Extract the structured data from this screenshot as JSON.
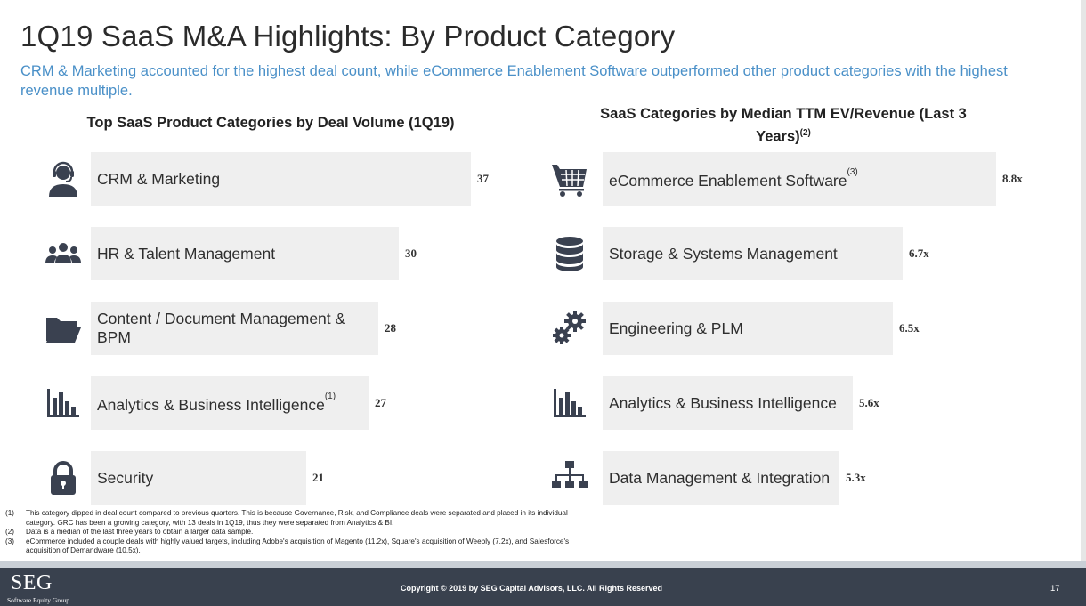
{
  "header": {
    "title": "1Q19 SaaS M&A Highlights: By Product Category",
    "subtitle": "CRM & Marketing accounted for the highest deal count, while eCommerce Enablement Software outperformed other product categories with the highest revenue multiple."
  },
  "chart_data": [
    {
      "type": "bar",
      "orientation": "horizontal",
      "title": "Top SaaS Product Categories by Deal Volume (1Q19)",
      "categories": [
        "CRM & Marketing",
        "HR & Talent Management",
        "Content / Document Management & BPM",
        "Analytics & Business Intelligence",
        "Security"
      ],
      "category_superscripts": [
        "",
        "",
        "",
        "(1)",
        ""
      ],
      "values": [
        37,
        30,
        28,
        27,
        21
      ],
      "value_labels": [
        "37",
        "30",
        "28",
        "27",
        "21"
      ],
      "icons": [
        "headset-user-icon",
        "users-group-icon",
        "folder-open-icon",
        "bar-chart-icon",
        "lock-icon"
      ],
      "bar_color": "#efefef"
    },
    {
      "type": "bar",
      "orientation": "horizontal",
      "title": "SaaS Categories by Median TTM EV/Revenue (Last 3 Years)",
      "title_superscript": "(2)",
      "categories": [
        "eCommerce Enablement Software",
        "Storage & Systems Management",
        "Engineering & PLM",
        "Analytics & Business Intelligence",
        "Data Management & Integration"
      ],
      "category_superscripts": [
        "(3)",
        "",
        "",
        "",
        ""
      ],
      "values": [
        8.8,
        6.7,
        6.5,
        5.6,
        5.3
      ],
      "value_labels": [
        "8.8x",
        "6.7x",
        "6.5x",
        "5.6x",
        "5.3x"
      ],
      "icons": [
        "shopping-cart-icon",
        "database-icon",
        "gears-icon",
        "bar-chart-icon",
        "org-chart-icon"
      ],
      "bar_color": "#efefef"
    }
  ],
  "footnotes": [
    {
      "num": "(1)",
      "text": "This category dipped in deal count compared to previous quarters. This is because Governance, Risk, and Compliance deals were separated and placed in its individual category. GRC has been a growing category, with 13 deals in 1Q19, thus they were separated from Analytics & BI."
    },
    {
      "num": "(2)",
      "text": "Data is a median of the last three years to obtain a larger data sample."
    },
    {
      "num": "(3)",
      "text": "eCommerce included a couple deals with highly valued targets, including Adobe's acquisition of Magento (11.2x), Square's acquisition of Weebly (7.2x), and Salesforce's acquisition of Demandware (10.5x)."
    }
  ],
  "footer": {
    "logo": "SEG",
    "logo_sub": "Software Equity Group",
    "copyright": "Copyright © 2019 by SEG Capital Advisors, LLC. All Rights Reserved",
    "page_number": "17"
  },
  "colors": {
    "subtitle": "#4a90c8",
    "footer_bg": "#39414e",
    "icon": "#3a4150"
  }
}
